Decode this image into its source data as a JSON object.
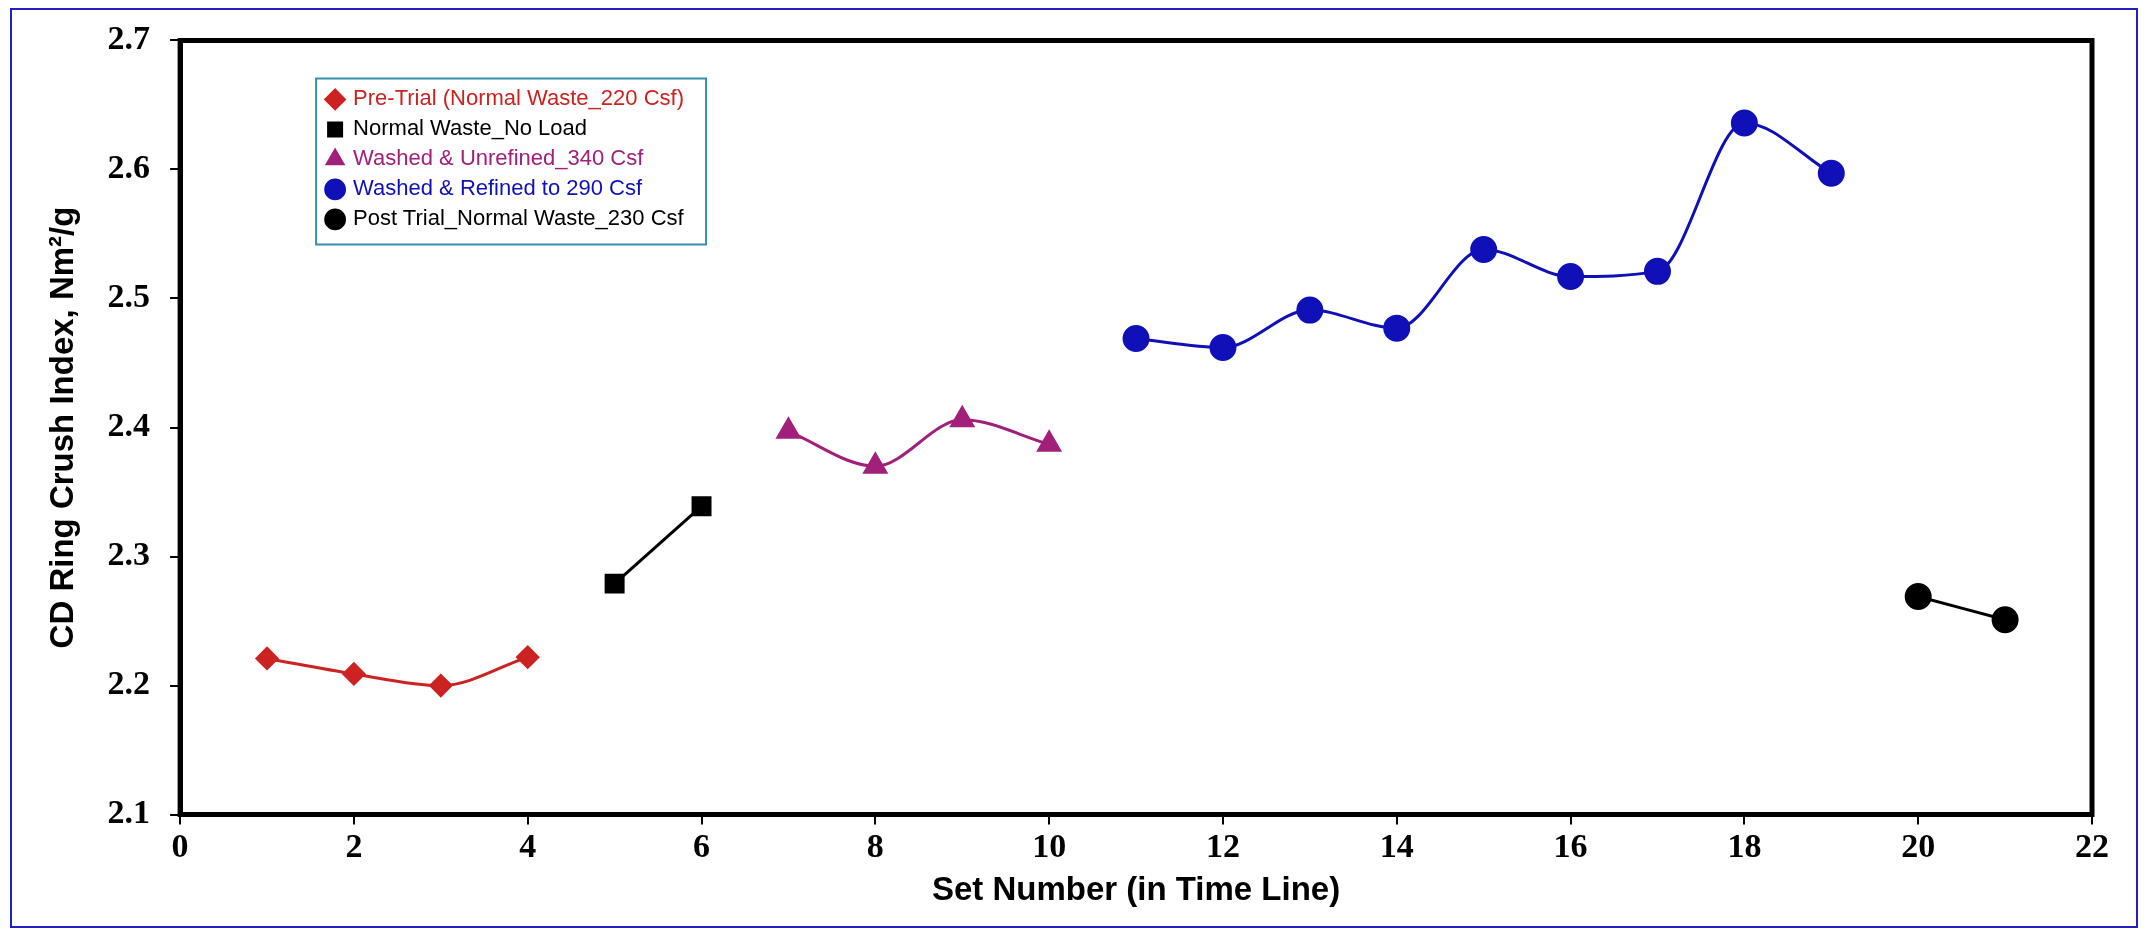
{
  "chart_data": {
    "type": "line",
    "xlabel": "Set Number (in Time Line)",
    "ylabel": "CD Ring Crush Index, Nm²/g",
    "xlim": [
      0,
      22
    ],
    "xticks": [
      0,
      2,
      4,
      6,
      8,
      10,
      12,
      14,
      16,
      18,
      20,
      22
    ],
    "ylim": [
      2.1,
      2.7
    ],
    "yticks": [
      2.1,
      2.2,
      2.3,
      2.4,
      2.5,
      2.6,
      2.7
    ],
    "grid": false,
    "legend": "top left",
    "series": [
      {
        "name": "Pre-Trial (Normal Waste_220 Csf)",
        "color": "#cc2222",
        "marker": "diamond",
        "x": [
          1,
          2,
          3,
          4
        ],
        "values": [
          2.221,
          2.209,
          2.2,
          2.222
        ]
      },
      {
        "name": "Normal Waste_No Load",
        "color": "#000000",
        "marker": "square",
        "x": [
          5,
          6
        ],
        "values": [
          2.279,
          2.339
        ]
      },
      {
        "name": "Washed & Unrefined_340 Csf",
        "color": "#a0207a",
        "marker": "triangle",
        "x": [
          7,
          8,
          9,
          10
        ],
        "values": [
          2.397,
          2.37,
          2.406,
          2.387
        ]
      },
      {
        "name": "Washed & Refined to 290 Csf",
        "color": "#1010b8",
        "marker": "circle",
        "x": [
          11,
          12,
          13,
          14,
          15,
          16,
          17,
          18,
          19
        ],
        "values": [
          2.469,
          2.462,
          2.491,
          2.477,
          2.538,
          2.517,
          2.521,
          2.636,
          2.597
        ]
      },
      {
        "name": "Post Trial_Normal Waste_230 Csf",
        "color": "#000000",
        "marker": "circle",
        "x": [
          20,
          21
        ],
        "values": [
          2.269,
          2.251
        ]
      }
    ]
  }
}
